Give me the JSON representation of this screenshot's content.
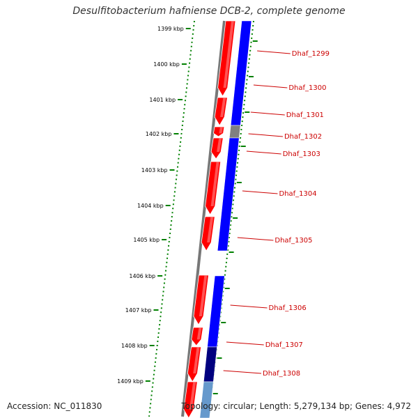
{
  "title": "Desulfitobacterium hafniense DCB-2, complete genome",
  "accession": "Accession: NC_011830",
  "summary": "Topology: circular; Length: 5,279,134 bp; Genes: 4,972",
  "ticks": [
    "1399 kbp",
    "1400 kbp",
    "1401 kbp",
    "1402 kbp",
    "1403 kbp",
    "1404 kbp",
    "1405 kbp",
    "1406 kbp",
    "1407 kbp",
    "1408 kbp",
    "1409 kbp"
  ],
  "genes": [
    "Dhaf_1299",
    "Dhaf_1300",
    "Dhaf_1301",
    "Dhaf_1302",
    "Dhaf_1303",
    "Dhaf_1304",
    "Dhaf_1305",
    "Dhaf_1306",
    "Dhaf_1307",
    "Dhaf_1308"
  ],
  "colors": {
    "forward_gene": "#ff0000",
    "cog_blue": "#0000ff",
    "cog_gray": "#808080",
    "cog_navy": "#00007f",
    "cog_light": "#6699cc",
    "tick_green": "#008000",
    "backbone": "#777777",
    "label_red": "#cc0000"
  }
}
